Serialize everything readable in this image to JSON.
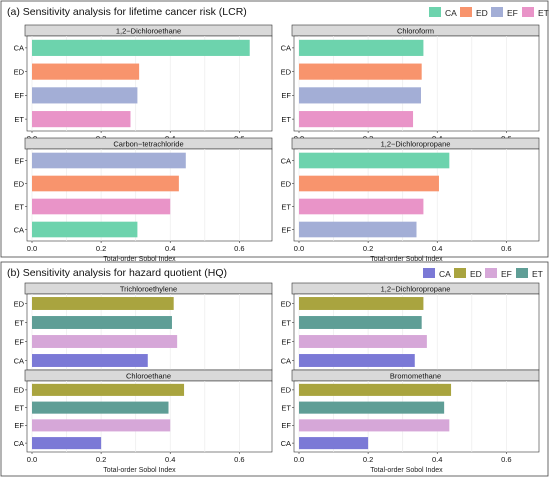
{
  "palette": {
    "lcr": {
      "CA": "#6dd3ad",
      "ED": "#f8946d",
      "EF": "#a3aed6",
      "ET": "#e994c8"
    },
    "hq": {
      "CA": "#7b79d6",
      "ED": "#a9a43f",
      "EF": "#d6a7d8",
      "ET": "#5f9e96"
    }
  },
  "sections": [
    {
      "id": "lcr",
      "title": "(a) Sensitivity analysis for lifetime cancer risk (LCR)",
      "legend": [
        "CA",
        "ED",
        "EF",
        "ET"
      ],
      "xlabel": "Total-order Sobol Index",
      "xticks": [
        "0.0",
        "0.2",
        "0.4",
        "0.6"
      ]
    },
    {
      "id": "hq",
      "title": "(b) Sensitivity analysis for hazard quotient (HQ)",
      "legend": [
        "CA",
        "ED",
        "EF",
        "ET"
      ],
      "xlabel": "Total-order Sobol Index",
      "xticks": [
        "0.0",
        "0.2",
        "0.4",
        "0.6"
      ]
    }
  ],
  "chart_data": [
    {
      "type": "bar",
      "section": "lcr",
      "title": "1,2−Dichloroethane",
      "categories": [
        "CA",
        "ED",
        "EF",
        "ET"
      ],
      "values": [
        0.63,
        0.31,
        0.305,
        0.285
      ],
      "xlim": [
        0,
        0.68
      ]
    },
    {
      "type": "bar",
      "section": "lcr",
      "title": "Chloroform",
      "categories": [
        "CA",
        "ED",
        "EF",
        "ET"
      ],
      "values": [
        0.36,
        0.355,
        0.353,
        0.33
      ],
      "xlim": [
        0,
        0.68
      ]
    },
    {
      "type": "bar",
      "section": "lcr",
      "title": "Carbon−tetrachloride",
      "categories": [
        "EF",
        "ED",
        "ET",
        "CA"
      ],
      "values": [
        0.445,
        0.425,
        0.4,
        0.305
      ],
      "xlim": [
        0,
        0.68
      ]
    },
    {
      "type": "bar",
      "section": "lcr",
      "title": "1,2−Dichloropropane",
      "categories": [
        "CA",
        "ED",
        "ET",
        "EF"
      ],
      "values": [
        0.435,
        0.405,
        0.36,
        0.34
      ],
      "xlim": [
        0,
        0.68
      ]
    },
    {
      "type": "bar",
      "section": "hq",
      "title": "Trichloroethylene",
      "categories": [
        "ED",
        "ET",
        "EF",
        "CA"
      ],
      "values": [
        0.41,
        0.405,
        0.42,
        0.335
      ],
      "xlim": [
        0,
        0.68
      ]
    },
    {
      "type": "bar",
      "section": "hq",
      "title": "1,2−Dichloropropane",
      "categories": [
        "ED",
        "ET",
        "EF",
        "CA"
      ],
      "values": [
        0.36,
        0.355,
        0.37,
        0.335
      ],
      "xlim": [
        0,
        0.68
      ]
    },
    {
      "type": "bar",
      "section": "hq",
      "title": "Chloroethane",
      "categories": [
        "ED",
        "ET",
        "EF",
        "CA"
      ],
      "values": [
        0.44,
        0.395,
        0.4,
        0.2
      ],
      "xlim": [
        0,
        0.68
      ]
    },
    {
      "type": "bar",
      "section": "hq",
      "title": "Bromomethane",
      "categories": [
        "ED",
        "ET",
        "EF",
        "CA"
      ],
      "values": [
        0.44,
        0.42,
        0.435,
        0.2
      ],
      "xlim": [
        0,
        0.68
      ]
    }
  ]
}
